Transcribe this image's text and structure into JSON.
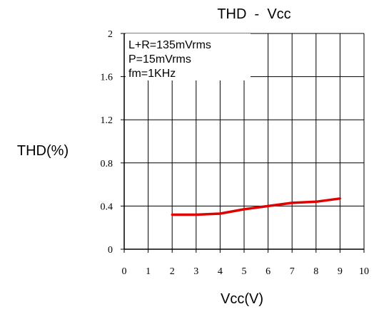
{
  "chart_data": {
    "type": "line",
    "title": "THD  -  Vcc",
    "xlabel": "Vcc(V)",
    "ylabel": "THD(%)",
    "xlim": [
      0,
      10
    ],
    "ylim": [
      0,
      2
    ],
    "x_ticks": [
      "0",
      "1",
      "2",
      "3",
      "4",
      "5",
      "6",
      "7",
      "8",
      "9",
      "10"
    ],
    "y_ticks": [
      "0",
      "0.4",
      "0.8",
      "1.2",
      "1.6",
      "2"
    ],
    "grid": true,
    "annotations": [
      "L+R=135mVrms",
      "P=15mVrms",
      "fm=1KHz"
    ],
    "series": [
      {
        "color": "#e00000",
        "x": [
          2,
          3,
          4,
          5,
          6,
          7,
          8,
          9
        ],
        "y": [
          0.32,
          0.32,
          0.33,
          0.37,
          0.4,
          0.43,
          0.44,
          0.47
        ]
      }
    ]
  }
}
